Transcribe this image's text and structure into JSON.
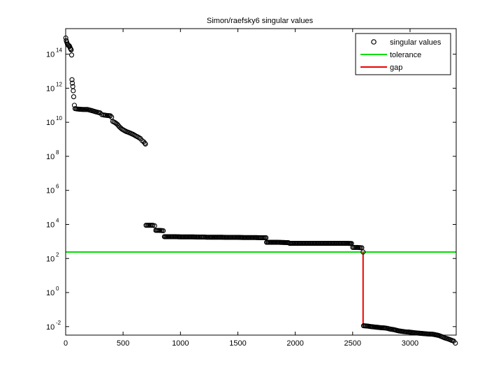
{
  "chart_data": {
    "type": "scatter",
    "title": "Simon/raefsky6 singular values",
    "xlabel": "",
    "ylabel": "",
    "xlim": [
      0,
      3402
    ],
    "ylim_log10": [
      -2.5,
      15.5
    ],
    "yscale": "log",
    "grid": false,
    "legend_position": "top-right",
    "x_ticks": [
      0,
      500,
      1000,
      1500,
      2000,
      2500,
      3000
    ],
    "y_ticks": [
      {
        "base": "10",
        "exp": "-2",
        "log": -2
      },
      {
        "base": "10",
        "exp": "0",
        "log": 0
      },
      {
        "base": "10",
        "exp": "2",
        "log": 2
      },
      {
        "base": "10",
        "exp": "4",
        "log": 4
      },
      {
        "base": "10",
        "exp": "6",
        "log": 6
      },
      {
        "base": "10",
        "exp": "8",
        "log": 8
      },
      {
        "base": "10",
        "exp": "10",
        "log": 10
      },
      {
        "base": "10",
        "exp": "12",
        "log": 12
      },
      {
        "base": "10",
        "exp": "14",
        "log": 14
      }
    ],
    "series": [
      {
        "name": "singular values",
        "marker": "circle-open",
        "color": "#000000",
        "log10_points": [
          [
            1,
            14.95
          ],
          [
            5,
            14.8
          ],
          [
            10,
            14.7
          ],
          [
            15,
            14.6
          ],
          [
            20,
            14.55
          ],
          [
            25,
            14.5
          ],
          [
            30,
            14.5
          ],
          [
            35,
            14.45
          ],
          [
            40,
            14.35
          ],
          [
            45,
            14.3
          ],
          [
            48,
            14.25
          ],
          [
            52,
            13.95
          ],
          [
            55,
            12.5
          ],
          [
            58,
            12.3
          ],
          [
            62,
            12.1
          ],
          [
            66,
            11.85
          ],
          [
            70,
            11.5
          ],
          [
            76,
            11.0
          ],
          [
            82,
            10.8
          ],
          [
            100,
            10.78
          ],
          [
            130,
            10.76
          ],
          [
            160,
            10.75
          ],
          [
            190,
            10.75
          ],
          [
            220,
            10.7
          ],
          [
            240,
            10.66
          ],
          [
            270,
            10.6
          ],
          [
            300,
            10.55
          ],
          [
            315,
            10.45
          ],
          [
            330,
            10.43
          ],
          [
            360,
            10.4
          ],
          [
            390,
            10.38
          ],
          [
            400,
            10.3
          ],
          [
            410,
            10.05
          ],
          [
            430,
            9.98
          ],
          [
            450,
            9.88
          ],
          [
            470,
            9.72
          ],
          [
            490,
            9.6
          ],
          [
            510,
            9.52
          ],
          [
            530,
            9.45
          ],
          [
            550,
            9.4
          ],
          [
            570,
            9.34
          ],
          [
            590,
            9.28
          ],
          [
            610,
            9.2
          ],
          [
            630,
            9.13
          ],
          [
            650,
            9.05
          ],
          [
            665,
            8.93
          ],
          [
            680,
            8.85
          ],
          [
            690,
            8.77
          ],
          [
            695,
            8.72
          ],
          [
            700,
            3.95
          ],
          [
            720,
            3.95
          ],
          [
            740,
            3.95
          ],
          [
            760,
            3.95
          ],
          [
            775,
            3.92
          ],
          [
            785,
            3.65
          ],
          [
            810,
            3.65
          ],
          [
            840,
            3.64
          ],
          [
            850,
            3.63
          ],
          [
            860,
            3.28
          ],
          [
            900,
            3.28
          ],
          [
            950,
            3.28
          ],
          [
            1000,
            3.27
          ],
          [
            1050,
            3.27
          ],
          [
            1100,
            3.27
          ],
          [
            1150,
            3.26
          ],
          [
            1200,
            3.26
          ],
          [
            1230,
            3.25
          ],
          [
            1260,
            3.25
          ],
          [
            1300,
            3.25
          ],
          [
            1350,
            3.25
          ],
          [
            1400,
            3.24
          ],
          [
            1450,
            3.24
          ],
          [
            1500,
            3.24
          ],
          [
            1550,
            3.23
          ],
          [
            1600,
            3.23
          ],
          [
            1650,
            3.23
          ],
          [
            1700,
            3.22
          ],
          [
            1745,
            3.22
          ],
          [
            1750,
            2.95
          ],
          [
            1800,
            2.95
          ],
          [
            1850,
            2.95
          ],
          [
            1900,
            2.94
          ],
          [
            1940,
            2.93
          ],
          [
            1950,
            2.89
          ],
          [
            2000,
            2.89
          ],
          [
            2050,
            2.89
          ],
          [
            2100,
            2.89
          ],
          [
            2150,
            2.89
          ],
          [
            2200,
            2.89
          ],
          [
            2250,
            2.89
          ],
          [
            2300,
            2.89
          ],
          [
            2350,
            2.89
          ],
          [
            2400,
            2.89
          ],
          [
            2450,
            2.89
          ],
          [
            2490,
            2.88
          ],
          [
            2500,
            2.65
          ],
          [
            2530,
            2.65
          ],
          [
            2560,
            2.64
          ],
          [
            2580,
            2.63
          ],
          [
            2591,
            2.38
          ],
          [
            2595,
            -1.95
          ],
          [
            2630,
            -1.97
          ],
          [
            2660,
            -2.0
          ],
          [
            2700,
            -2.03
          ],
          [
            2740,
            -2.06
          ],
          [
            2780,
            -2.08
          ],
          [
            2800,
            -2.1
          ],
          [
            2830,
            -2.15
          ],
          [
            2860,
            -2.18
          ],
          [
            2900,
            -2.25
          ],
          [
            2950,
            -2.3
          ],
          [
            3000,
            -2.33
          ],
          [
            3050,
            -2.37
          ],
          [
            3100,
            -2.4
          ],
          [
            3150,
            -2.43
          ],
          [
            3200,
            -2.45
          ],
          [
            3250,
            -2.52
          ],
          [
            3280,
            -2.6
          ],
          [
            3300,
            -2.66
          ],
          [
            3330,
            -2.72
          ],
          [
            3360,
            -2.8
          ],
          [
            3380,
            -2.85
          ],
          [
            3395,
            -2.97
          ]
        ]
      },
      {
        "name": "tolerance",
        "color": "#00dd00",
        "log10_value": 2.38
      },
      {
        "name": "gap",
        "color": "#ee0000",
        "x": 2591,
        "log10_from": 2.38,
        "log10_to": -1.95
      }
    ]
  }
}
